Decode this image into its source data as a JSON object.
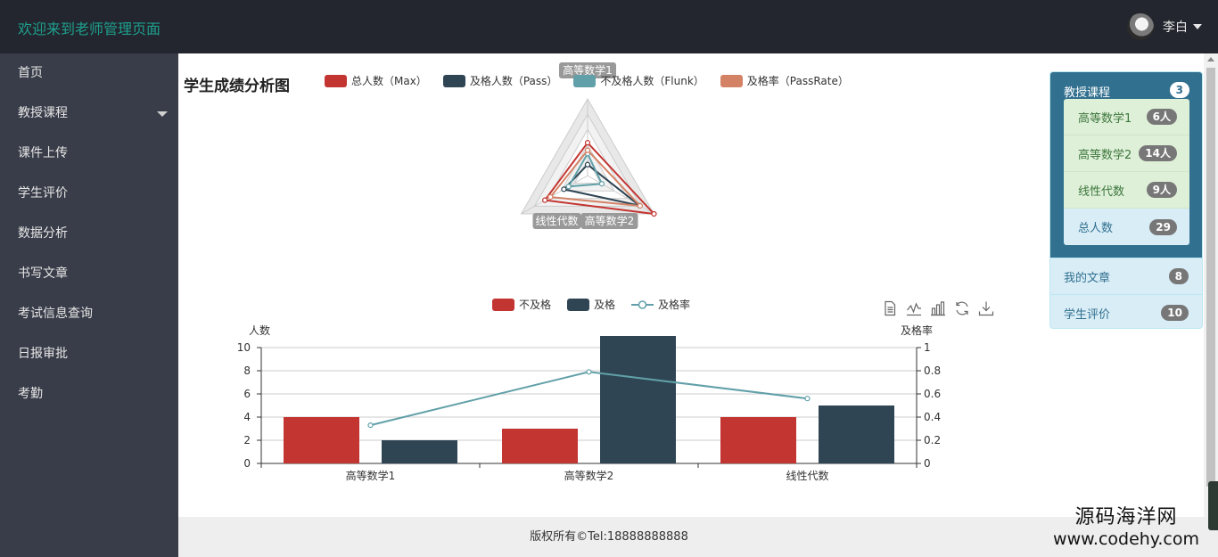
{
  "header": {
    "title": "欢迎来到老师管理页面",
    "username": "李白"
  },
  "sidebar": {
    "items": [
      {
        "label": "首页"
      },
      {
        "label": "教授课程"
      },
      {
        "label": "课件上传"
      },
      {
        "label": "学生评价"
      },
      {
        "label": "数据分析"
      },
      {
        "label": "书写文章"
      },
      {
        "label": "考试信息查询"
      },
      {
        "label": "日报审批"
      },
      {
        "label": "考勤"
      }
    ]
  },
  "main": {
    "title": "学生成绩分析图"
  },
  "colors": {
    "total": "#c23531",
    "pass": "#2f4554",
    "fail": "#61a0a8",
    "rate": "#d48265",
    "brand": "#1e9f8e",
    "panel": "#31708f"
  },
  "chart_data": [
    {
      "type": "radar",
      "legend": [
        "总人数（Max）",
        "及格人数（Pass）",
        "不及格人数（Flunk）",
        "及格率（PassRate）"
      ],
      "indicators": [
        "高等数学1",
        "高等数学2",
        "线性代数"
      ],
      "series": [
        {
          "name": "总人数（Max）",
          "values": [
            6,
            14,
            9
          ]
        },
        {
          "name": "及格人数（Pass）",
          "values": [
            2,
            11,
            5
          ]
        },
        {
          "name": "不及格人数（Flunk）",
          "values": [
            4,
            3,
            4
          ]
        },
        {
          "name": "及格率（PassRate）",
          "values": [
            0.33,
            0.79,
            0.56
          ]
        }
      ]
    },
    {
      "type": "bar",
      "legend": [
        "不及格",
        "及格",
        "及格率"
      ],
      "categories": [
        "高等数学1",
        "高等数学2",
        "线性代数"
      ],
      "series": [
        {
          "name": "不及格",
          "type": "bar",
          "values": [
            4,
            3,
            4
          ]
        },
        {
          "name": "及格",
          "type": "bar",
          "values": [
            2,
            11,
            5
          ]
        },
        {
          "name": "及格率",
          "type": "line",
          "axis": "right",
          "values": [
            0.33,
            0.79,
            0.56
          ]
        }
      ],
      "ylabel": "人数",
      "ylabel_right": "及格率",
      "ylim": [
        0,
        10
      ],
      "yticks": [
        "0",
        "2",
        "4",
        "6",
        "8",
        "10"
      ],
      "ylim_right": [
        0,
        1
      ],
      "yticks_right": [
        "0",
        "0.2",
        "0.4",
        "0.6",
        "0.8",
        "1"
      ],
      "grid": true,
      "toolbox": [
        "data-view-icon",
        "line-chart-icon",
        "bar-chart-icon",
        "restore-icon",
        "download-icon"
      ]
    }
  ],
  "panel": {
    "title": "教授课程",
    "count": "3",
    "courses": [
      {
        "label": "高等数学1",
        "badge": "6人"
      },
      {
        "label": "高等数学2",
        "badge": "14人"
      },
      {
        "label": "线性代数",
        "badge": "9人"
      }
    ],
    "total": {
      "label": "总人数",
      "badge": "29"
    },
    "rows": [
      {
        "label": "我的文章",
        "badge": "8"
      },
      {
        "label": "学生评价",
        "badge": "10"
      }
    ]
  },
  "footer": {
    "text": "版权所有©Tel:18888888888"
  },
  "watermark": {
    "line1": "源码海洋网",
    "line2": "www.codehy.com"
  }
}
